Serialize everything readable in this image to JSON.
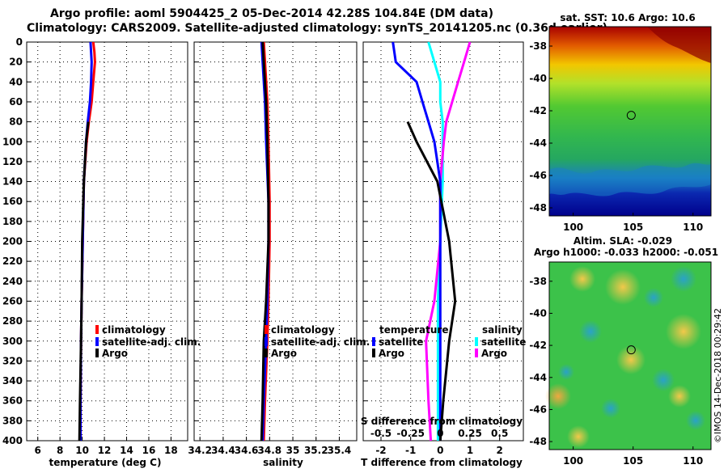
{
  "header": {
    "title_line1": "Argo profile: aoml 5904425_2 05-Dec-2014 42.28S 104.84E (DM data)",
    "title_line2": "Climatology: CARS2009. Satellite-adjusted climatology: synTS_20141205.nc (0.36d earlier)"
  },
  "colors": {
    "climatology": "#ff0000",
    "satellite": "#0000ff",
    "argo": "#000000",
    "sat_salinity": "#00ffff",
    "argo_salinity": "#ff00ff"
  },
  "chart_data": [
    {
      "type": "line",
      "title": "",
      "xlabel": "temperature (deg C)",
      "ylabel": "",
      "xlim": [
        5,
        19.5
      ],
      "ylim": [
        400,
        0
      ],
      "xticks": [
        "6",
        "8",
        "10",
        "12",
        "14",
        "16",
        "18"
      ],
      "yticks": [
        "0",
        "20",
        "40",
        "60",
        "80",
        "100",
        "120",
        "140",
        "160",
        "180",
        "200",
        "220",
        "240",
        "260",
        "280",
        "300",
        "320",
        "340",
        "360",
        "380",
        "400"
      ],
      "depth": [
        0,
        10,
        20,
        40,
        60,
        80,
        100,
        140,
        200,
        260,
        300,
        360,
        400
      ],
      "series": [
        {
          "name": "climatology",
          "values": [
            11.0,
            11.1,
            11.15,
            11.0,
            10.85,
            10.6,
            10.4,
            10.15,
            10.05,
            9.95,
            9.9,
            9.85,
            9.85
          ]
        },
        {
          "name": "satellite-adj. clim.",
          "values": [
            10.75,
            10.8,
            10.85,
            10.8,
            10.7,
            10.5,
            10.35,
            10.15,
            10.05,
            9.95,
            9.9,
            9.85,
            9.85
          ]
        },
        {
          "name": "Argo",
          "values": [
            null,
            null,
            null,
            null,
            null,
            10.55,
            10.35,
            10.15,
            10.0,
            9.95,
            9.9,
            9.8,
            9.75
          ]
        }
      ],
      "legend": [
        "climatology",
        "satellite-adj. clim.",
        "Argo"
      ]
    },
    {
      "type": "line",
      "title": "",
      "xlabel": "salinity",
      "ylabel": "",
      "xlim": [
        34.15,
        35.55
      ],
      "ylim": [
        400,
        0
      ],
      "xticks": [
        "34.2",
        "34.4",
        "34.6",
        "34.8",
        "35",
        "35.2",
        "35.4"
      ],
      "depth": [
        0,
        20,
        60,
        100,
        160,
        200,
        260,
        300,
        360,
        400
      ],
      "series": [
        {
          "name": "climatology",
          "values": [
            34.75,
            34.76,
            34.78,
            34.79,
            34.8,
            34.8,
            34.79,
            34.78,
            34.76,
            34.75
          ]
        },
        {
          "name": "satellite-adj. clim.",
          "values": [
            34.73,
            34.74,
            34.76,
            34.77,
            34.79,
            34.79,
            34.78,
            34.77,
            34.75,
            34.74
          ]
        },
        {
          "name": "Argo",
          "values": [
            34.74,
            34.75,
            34.77,
            34.78,
            34.79,
            34.79,
            34.77,
            34.75,
            34.74,
            34.73
          ]
        }
      ],
      "legend": [
        "climatology",
        "satellite-adj. clim.",
        "Argo"
      ]
    },
    {
      "type": "line",
      "title": "",
      "xlabel": "T difference from climatology",
      "xlabel2": "S difference from climatology",
      "ylabel": "",
      "xlim": [
        -2.6,
        2.8
      ],
      "ylim": [
        400,
        0
      ],
      "xticks": [
        "-2",
        "-1",
        "0",
        "1",
        "2"
      ],
      "xticks2": [
        "-0.5",
        "-0.25",
        "0",
        "0.25",
        "0.5"
      ],
      "depth": [
        0,
        20,
        40,
        60,
        80,
        100,
        140,
        200,
        260,
        300,
        360,
        400
      ],
      "series": [
        {
          "name": "temperature satellite",
          "values": [
            -1.6,
            -1.5,
            -0.8,
            -0.6,
            -0.4,
            -0.2,
            0.0,
            0.0,
            0.0,
            0.0,
            0.0,
            0.0
          ]
        },
        {
          "name": "temperature Argo",
          "values": [
            null,
            null,
            null,
            null,
            -1.1,
            -0.8,
            -0.1,
            0.3,
            0.5,
            0.3,
            0.1,
            0.0
          ]
        },
        {
          "name": "salinity satellite",
          "values": [
            -0.1,
            -0.05,
            0.0,
            0.0,
            0.02,
            0.02,
            0.02,
            0.0,
            -0.02,
            -0.02,
            -0.02,
            -0.02
          ]
        },
        {
          "name": "salinity Argo",
          "values": [
            0.25,
            0.2,
            0.15,
            0.1,
            0.05,
            0.03,
            0.0,
            0.0,
            -0.05,
            -0.12,
            -0.1,
            -0.08
          ]
        }
      ],
      "legend_groups": {
        "temperature": [
          "satellite",
          "Argo"
        ],
        "salinity": [
          "satellite",
          "Argo"
        ]
      }
    },
    {
      "type": "heatmap",
      "title": "sat. SST: 10.6 Argo: 10.6",
      "xticks": [
        "100",
        "105",
        "110"
      ],
      "yticks": [
        "-38",
        "-40",
        "-42",
        "-44",
        "-46",
        "-48"
      ],
      "xlim": [
        98,
        111.5
      ],
      "ylim": [
        -48.5,
        -36.8
      ],
      "marker": {
        "lon": 104.84,
        "lat": -42.28
      }
    },
    {
      "type": "heatmap",
      "title": "Altim. SLA: -0.029",
      "subtitle": "Argo h1000: -0.033 h2000: -0.051",
      "xticks": [
        "100",
        "105",
        "110"
      ],
      "yticks": [
        "-38",
        "-40",
        "-42",
        "-44",
        "-46",
        "-48"
      ],
      "xlim": [
        98,
        111.5
      ],
      "ylim": [
        -48.5,
        -36.8
      ],
      "marker": {
        "lon": 104.84,
        "lat": -42.28
      }
    }
  ],
  "copyright": "©IMOS 14-Dec-2018 00:29:42"
}
